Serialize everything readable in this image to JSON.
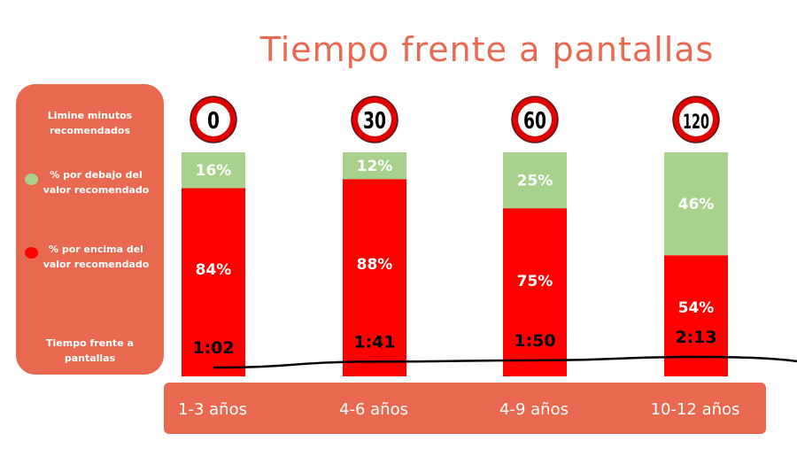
{
  "title": "Tiempo frente a pantallas",
  "legend": {
    "limit_label": "Limine minutos recomendados",
    "below_label": "% por debajo del valor recomendado",
    "above_label": "% por encima del valor recomendado",
    "time_label": "Tiempo frente a pantallas"
  },
  "chart_data": {
    "type": "bar",
    "stacked": true,
    "categories": [
      "1-3 años",
      "4-6 años",
      "4-9 años",
      "10-12 años"
    ],
    "recommended_limit_minutes": [
      "0",
      "30",
      "60",
      "120"
    ],
    "series": [
      {
        "name": "% por debajo del valor recomendado",
        "color": "#a9d18e",
        "values": [
          16,
          12,
          25,
          46
        ],
        "labels": [
          "16%",
          "12%",
          "25%",
          "46%"
        ]
      },
      {
        "name": "% por encima del valor recomendado",
        "color": "#ff0000",
        "values": [
          84,
          88,
          75,
          54
        ],
        "labels": [
          "84%",
          "88%",
          "75%",
          "54%"
        ]
      }
    ],
    "time_series": {
      "name": "Tiempo frente a pantallas",
      "values": [
        "1:02",
        "1:41",
        "1:50",
        "2:13"
      ],
      "minutes": [
        62,
        101,
        110,
        133
      ],
      "color": "#000000"
    },
    "ylim": [
      0,
      100
    ]
  }
}
